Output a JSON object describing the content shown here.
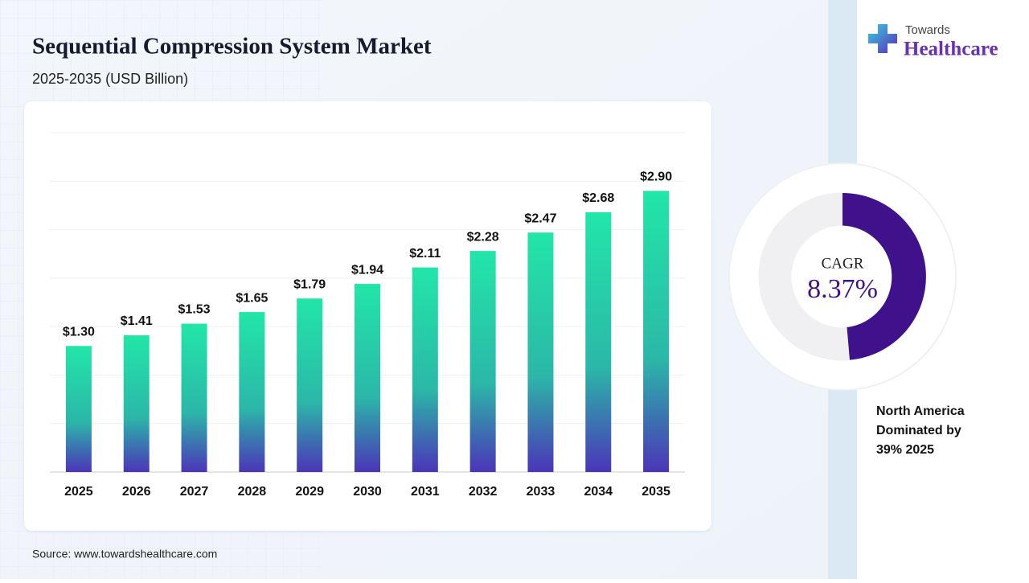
{
  "header": {
    "title": "Sequential Compression System Market",
    "subtitle": "2025-2035 (USD Billion)"
  },
  "logo": {
    "top": "Towards",
    "bottom": "Healthcare"
  },
  "chart_data": {
    "type": "bar",
    "categories": [
      "2025",
      "2026",
      "2027",
      "2028",
      "2029",
      "2030",
      "2031",
      "2032",
      "2033",
      "2034",
      "2035"
    ],
    "values": [
      1.3,
      1.41,
      1.53,
      1.65,
      1.79,
      1.94,
      2.11,
      2.28,
      2.47,
      2.68,
      2.9
    ],
    "value_labels": [
      "$1.30",
      "$1.41",
      "$1.53",
      "$1.65",
      "$1.79",
      "$1.94",
      "$2.11",
      "$2.28",
      "$2.47",
      "$2.68",
      "$2.90"
    ],
    "color_top": "#22e6a8",
    "color_bottom": "#4b35b8",
    "ylim": [
      0,
      3.5
    ],
    "yticks": [
      0,
      0.5,
      1,
      1.5,
      2,
      2.5,
      3,
      3.5
    ],
    "grid": true
  },
  "cagr": {
    "label": "CAGR",
    "value": "8.37%"
  },
  "note": [
    "North America",
    "Dominated by",
    "39% 2025"
  ],
  "source": "Source: www.towardshealthcare.com"
}
